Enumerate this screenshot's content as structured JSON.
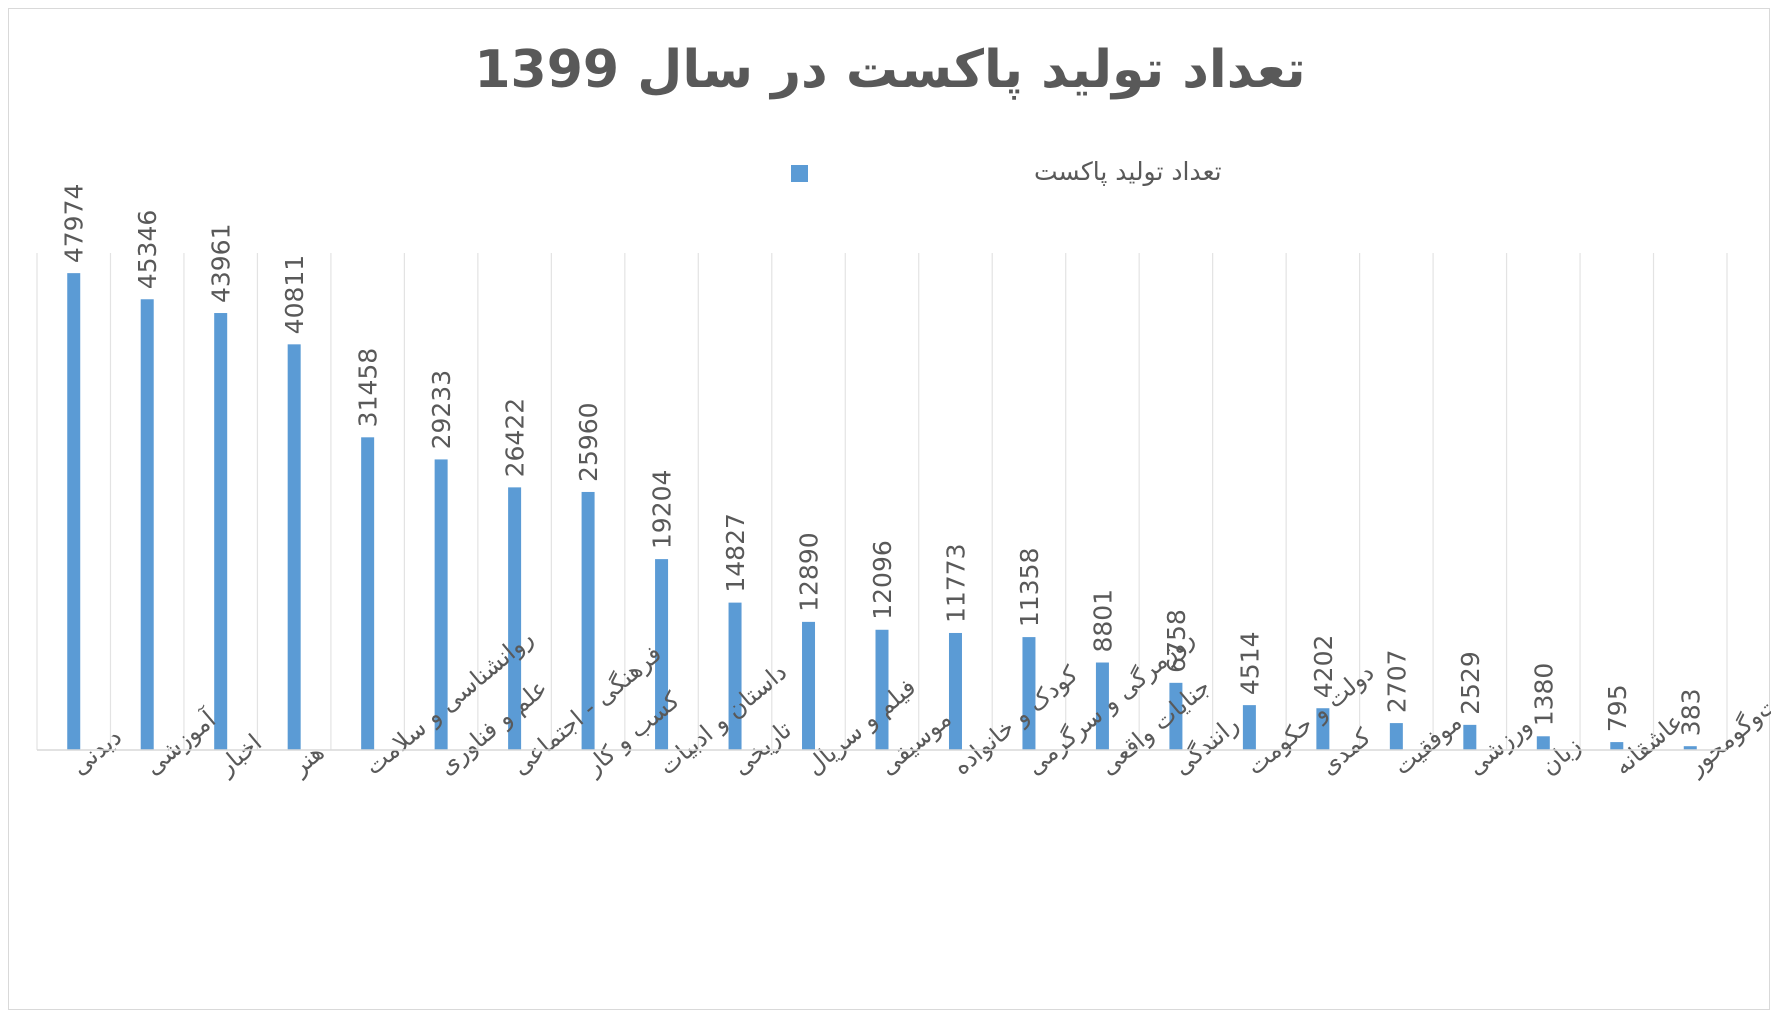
{
  "chart_data": {
    "type": "bar",
    "title": "تعداد تولید پاکست در سال 1399",
    "legend": {
      "label": "تعداد تولید پاکست",
      "position": "top"
    },
    "grid": "vertical",
    "ylim": [
      0,
      50000
    ],
    "bar_color": "#5b9bd5",
    "categories": [
      "دیدنی",
      "آموزشی",
      "اخبار",
      "هنر",
      "روانشناسی و سلامت",
      "علم و فناوری",
      "فرهنگی - اجتماعی",
      "کسب و کار",
      "داستان و ادبیات",
      "تاریخی",
      "فیلم و سریال",
      "موسیقی",
      "کودک و خانواده",
      "روزمرگی و سرگرمی",
      "جنایات واقعی",
      "رانندگی",
      "دولت و حکومت",
      "کمدی",
      "موفقیت",
      "ورزشی",
      "زبان",
      "عاشقانه",
      "گفت‌وگومحور"
    ],
    "values": [
      47974,
      45346,
      43961,
      40811,
      31458,
      29233,
      26422,
      25960,
      19204,
      14827,
      12890,
      12096,
      11773,
      11358,
      8801,
      6758,
      4514,
      4202,
      2707,
      2529,
      1380,
      795,
      383
    ]
  }
}
